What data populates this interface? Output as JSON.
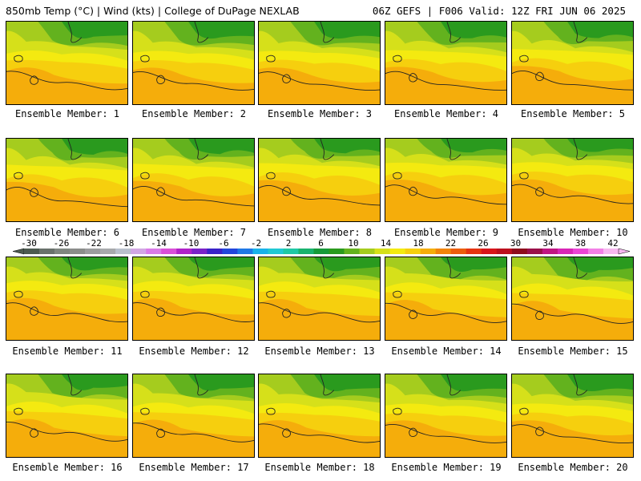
{
  "header": {
    "left": "850mb Temp (°C) | Wind (kts) | College of DuPage NEXLAB",
    "right": "06Z GEFS | F006 Valid: 12Z FRI JUN 06 2025"
  },
  "panels": [
    {
      "caption": "Ensemble Member: 1"
    },
    {
      "caption": "Ensemble Member: 2"
    },
    {
      "caption": "Ensemble Member: 3"
    },
    {
      "caption": "Ensemble Member: 4"
    },
    {
      "caption": "Ensemble Member: 5"
    },
    {
      "caption": "Ensemble Member: 6"
    },
    {
      "caption": "Ensemble Member: 7"
    },
    {
      "caption": "Ensemble Member: 8"
    },
    {
      "caption": "Ensemble Member: 9"
    },
    {
      "caption": "Ensemble Member: 10"
    },
    {
      "caption": "Ensemble Member: 11"
    },
    {
      "caption": "Ensemble Member: 12"
    },
    {
      "caption": "Ensemble Member: 13"
    },
    {
      "caption": "Ensemble Member: 14"
    },
    {
      "caption": "Ensemble Member: 15"
    },
    {
      "caption": "Ensemble Member: 16"
    },
    {
      "caption": "Ensemble Member: 17"
    },
    {
      "caption": "Ensemble Member: 18"
    },
    {
      "caption": "Ensemble Member: 19"
    },
    {
      "caption": "Ensemble Member: 20"
    }
  ],
  "colorbar": {
    "labels": [
      "-30",
      "-26",
      "-22",
      "-18",
      "-14",
      "-10",
      "-6",
      "-2",
      "2",
      "6",
      "10",
      "14",
      "18",
      "22",
      "26",
      "30",
      "34",
      "38",
      "42"
    ],
    "colors": [
      "#4d5a50",
      "#69716c",
      "#7f8680",
      "#8b8d8b",
      "#9b9c9e",
      "#a7a9ac",
      "#b9c0cc",
      "#d2a6e3",
      "#d97ae8",
      "#d94fd8",
      "#b022c8",
      "#7a22c8",
      "#3a22c8",
      "#2246dc",
      "#1f78e6",
      "#18b2ea",
      "#21c8d4",
      "#1fc8a6",
      "#19b26e",
      "#169a3a",
      "#2a9a1e",
      "#63b21e",
      "#a5cc1e",
      "#d6e01a",
      "#f4ea10",
      "#f6cf0e",
      "#f5ad0b",
      "#f1840b",
      "#ec5d0d",
      "#e53311",
      "#d8151a",
      "#bc0f1d",
      "#8f0b1c",
      "#9b0f4a",
      "#c01682",
      "#d825b6",
      "#ea44d5",
      "#f27fe6",
      "#f7b7f0"
    ]
  }
}
